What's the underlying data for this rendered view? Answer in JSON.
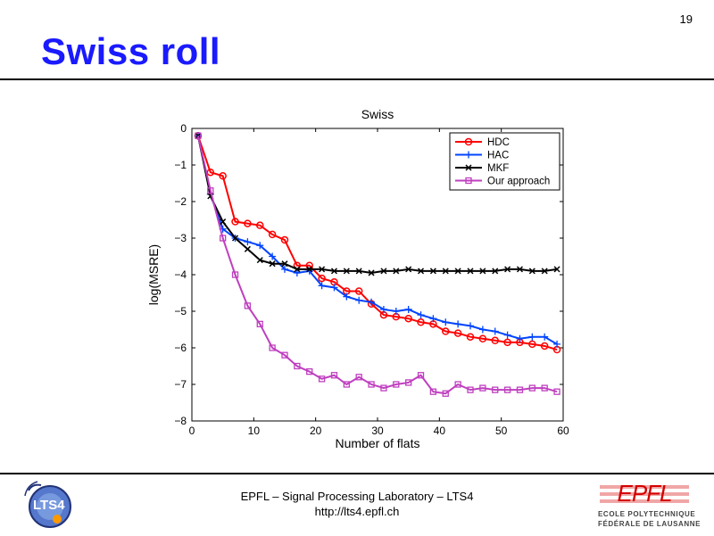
{
  "page_number": "19",
  "slide_title": "Swiss roll",
  "footer": {
    "line1": "EPFL – Signal Processing Laboratory – LTS4",
    "line2": "http://lts4.epfl.ch"
  },
  "logos": {
    "left_text": "LTS4",
    "right_text": "EPFL",
    "right_sub1": "ECOLE POLYTECHNIQUE",
    "right_sub2": "FÉDÉRALE DE LAUSANNE"
  },
  "colors": {
    "title": "#1a1aff",
    "hdc": "#ff0000",
    "hac": "#0044ff",
    "mkf": "#000000",
    "ours": "#bf3fbf"
  },
  "chart_data": {
    "type": "line",
    "title": "Swiss",
    "xlabel": "Number of flats",
    "ylabel": "log(MSRE)",
    "xlim": [
      0,
      60
    ],
    "ylim": [
      -8,
      0
    ],
    "xticks": [
      0,
      10,
      20,
      30,
      40,
      50,
      60
    ],
    "yticks": [
      0,
      -1,
      -2,
      -3,
      -4,
      -5,
      -6,
      -7,
      -8
    ],
    "ytick_labels": [
      "0",
      "−1",
      "−2",
      "−3",
      "−4",
      "−5",
      "−6",
      "−7",
      "−8"
    ],
    "grid": false,
    "legend_position": "top-right",
    "x": [
      1,
      3,
      5,
      7,
      9,
      11,
      13,
      15,
      17,
      19,
      21,
      23,
      25,
      27,
      29,
      31,
      33,
      35,
      37,
      39,
      41,
      43,
      45,
      47,
      49,
      51,
      53,
      55,
      57,
      59
    ],
    "series": [
      {
        "name": "HDC",
        "color": "#ff0000",
        "marker": "circle",
        "values": [
          -0.2,
          -1.2,
          -1.3,
          -2.55,
          -2.6,
          -2.65,
          -2.9,
          -3.05,
          -3.75,
          -3.75,
          -4.1,
          -4.2,
          -4.45,
          -4.45,
          -4.8,
          -5.1,
          -5.15,
          -5.2,
          -5.3,
          -5.35,
          -5.55,
          -5.6,
          -5.7,
          -5.75,
          -5.8,
          -5.85,
          -5.85,
          -5.9,
          -5.95,
          -6.05
        ]
      },
      {
        "name": "HAC",
        "color": "#0044ff",
        "marker": "plus",
        "values": [
          -0.2,
          -1.8,
          -2.75,
          -3.0,
          -3.1,
          -3.2,
          -3.5,
          -3.85,
          -3.95,
          -3.9,
          -4.3,
          -4.35,
          -4.6,
          -4.7,
          -4.75,
          -4.95,
          -5.0,
          -4.95,
          -5.1,
          -5.2,
          -5.3,
          -5.35,
          -5.4,
          -5.5,
          -5.55,
          -5.65,
          -5.75,
          -5.7,
          -5.7,
          -5.9
        ]
      },
      {
        "name": "MKF",
        "color": "#000000",
        "marker": "x",
        "values": [
          -0.2,
          -1.85,
          -2.55,
          -3.0,
          -3.3,
          -3.6,
          -3.7,
          -3.7,
          -3.85,
          -3.85,
          -3.85,
          -3.9,
          -3.9,
          -3.9,
          -3.95,
          -3.9,
          -3.9,
          -3.85,
          -3.9,
          -3.9,
          -3.9,
          -3.9,
          -3.9,
          -3.9,
          -3.9,
          -3.85,
          -3.85,
          -3.9,
          -3.9,
          -3.85
        ]
      },
      {
        "name": "Our approach",
        "color": "#bf3fbf",
        "marker": "square",
        "values": [
          -0.2,
          -1.7,
          -3.0,
          -4.0,
          -4.85,
          -5.35,
          -6.0,
          -6.2,
          -6.5,
          -6.65,
          -6.85,
          -6.75,
          -7.0,
          -6.8,
          -7.0,
          -7.1,
          -7.0,
          -6.95,
          -6.75,
          -7.2,
          -7.25,
          -7.0,
          -7.15,
          -7.1,
          -7.15,
          -7.15,
          -7.15,
          -7.1,
          -7.1,
          -7.2
        ]
      }
    ]
  }
}
